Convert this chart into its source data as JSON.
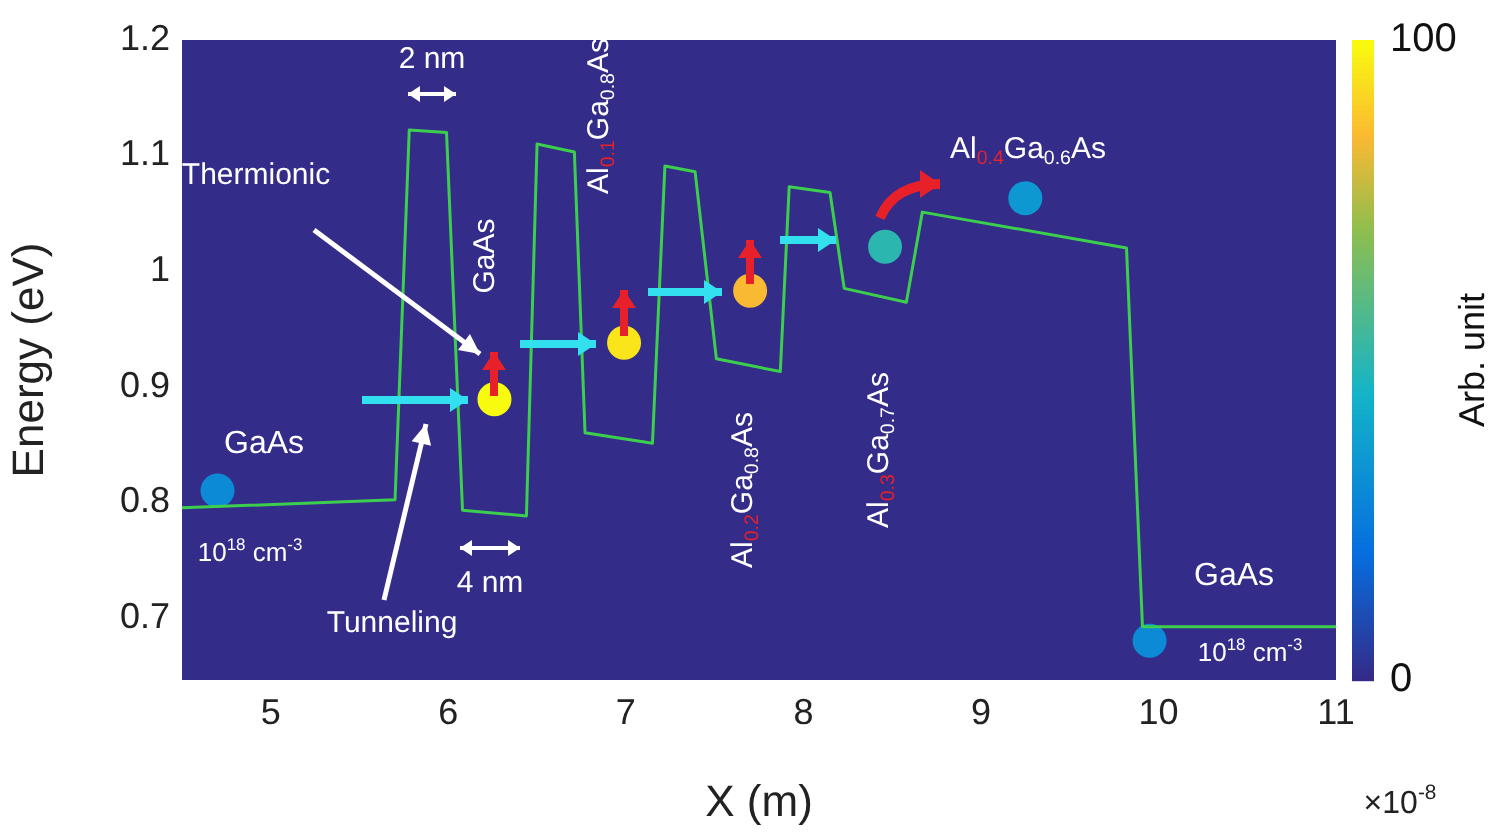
{
  "chart_data": {
    "type": "line",
    "xlabel": "X (m)",
    "ylabel": "Energy (eV)",
    "clabel": "Arb. unit",
    "xlim": [
      4.5,
      11
    ],
    "xticks": [
      5,
      6,
      7,
      8,
      9,
      10,
      11
    ],
    "ylim": [
      0.646,
      1.2
    ],
    "yticks": [
      0.7,
      0.8,
      0.9,
      1,
      1.1,
      1.2
    ],
    "clim": [
      0,
      100
    ],
    "cticks": [
      0,
      100
    ],
    "grid": false,
    "legend": false,
    "series": [
      {
        "type": "line",
        "color": "#3ccf4e",
        "marker": "none",
        "line_style": "solid",
        "x": [
          4.5,
          5.7,
          5.78,
          5.99,
          6.08,
          6.44,
          6.5,
          6.71,
          6.77,
          7.15,
          7.22,
          7.39,
          7.51,
          7.87,
          7.92,
          8.15,
          8.23,
          8.58,
          8.67,
          9.82,
          9.91,
          11
        ],
        "values": [
          0.795,
          0.802,
          1.122,
          1.12,
          0.793,
          0.788,
          1.11,
          1.103,
          0.86,
          0.851,
          1.091,
          1.086,
          0.924,
          0.913,
          1.073,
          1.068,
          0.985,
          0.973,
          1.051,
          1.02,
          0.692,
          0.692
        ]
      },
      {
        "type": "scatter",
        "marker": "circle",
        "x": [
          4.7,
          6.26,
          6.99,
          7.7,
          8.46,
          9.25,
          9.95
        ],
        "values": [
          0.81,
          0.889,
          0.938,
          0.983,
          1.021,
          1.063,
          0.68
        ],
        "colors": [
          "#0c8ad6",
          "#f9fb0e",
          "#f9e51a",
          "#fab932",
          "#2cb6b0",
          "#0e98d2",
          "#0c8ad6"
        ]
      }
    ],
    "annotations": [
      "2 nm",
      "4 nm",
      "Thermionic",
      "Tunneling",
      "GaAs",
      "GaAs",
      "10$^{18}$ cm$^{-3}$",
      "Al$_{0.1}$Ga$_{0.8}$As",
      "Al$_{0.2}$Ga$_{0.8}$As",
      "Al$_{0.3}$Ga$_{0.7}$As",
      "Al$_{0.4}$Ga$_{0.6}$As",
      "GaAs",
      "10$^{18}$ cm$^{-3}$",
      "×10$^{-8}$"
    ]
  }
}
